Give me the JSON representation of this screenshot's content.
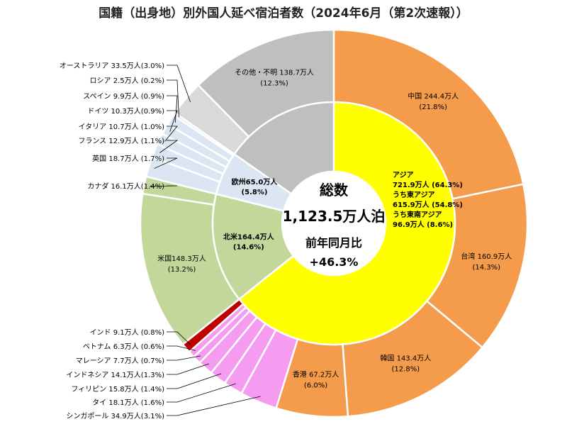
{
  "title": "国籍（出身地）別外国人延べ宿泊者数（2024年6月（第2次速報））",
  "center": {
    "line1": "総数",
    "line2": "1,123.5万人泊",
    "line3": "前年同月比",
    "line4": "+46.3%"
  },
  "chart_data": {
    "type": "pie",
    "subtype": "double-donut",
    "total": 1123.5,
    "unit": "万人泊",
    "yoy_change": "+46.3%",
    "colors": {
      "asia_east": "#f59c4c",
      "asia_southeast": "#f59cf0",
      "india": "#c00000",
      "asia_inner": "#ffff00",
      "north_america": "#c4d79b",
      "europe": "#dce6f2",
      "other": "#bfbfbf",
      "other_outer": "#d9d9d9"
    },
    "inner_ring": [
      {
        "name": "アジア",
        "value": 721.9,
        "pct": 64.3,
        "label_lines": [
          "アジア",
          "721.9万人 (64.3%)",
          "うち東アジア",
          "615.9万人 (54.8%)",
          "うち東南アジア",
          "96.9万人 (8.6%)"
        ],
        "color_key": "asia_inner"
      },
      {
        "name": "北米",
        "value": 164.4,
        "pct": 14.6,
        "label_lines": [
          "北米164.4万人",
          "(14.6%)"
        ],
        "color_key": "north_america"
      },
      {
        "name": "欧州",
        "value": 65.0,
        "pct": 5.8,
        "label_lines": [
          "欧州65.0万人",
          "(5.8%)"
        ],
        "color_key": "europe"
      },
      {
        "name": "その他",
        "value": 172.2,
        "pct": 15.3,
        "label_lines": [],
        "color_key": "other"
      }
    ],
    "outer_ring": [
      {
        "name": "中国",
        "value": 244.4,
        "pct": 21.8,
        "label_lines": [
          "中国 244.4万人",
          "(21.8%)"
        ],
        "color_key": "asia_east"
      },
      {
        "name": "台湾",
        "value": 160.9,
        "pct": 14.3,
        "label_lines": [
          "台湾 160.9万人",
          "(14.3%)"
        ],
        "color_key": "asia_east"
      },
      {
        "name": "韓国",
        "value": 143.4,
        "pct": 12.8,
        "label_lines": [
          "韓国 143.4万人",
          "(12.8%)"
        ],
        "color_key": "asia_east"
      },
      {
        "name": "香港",
        "value": 67.2,
        "pct": 6.0,
        "label_lines": [
          "香港 67.2万人",
          "(6.0%)"
        ],
        "color_key": "asia_east"
      },
      {
        "name": "シンガポール",
        "value": 34.9,
        "pct": 3.1,
        "label": "シンガポール 34.9万人(3.1%)",
        "color_key": "asia_southeast"
      },
      {
        "name": "タイ",
        "value": 18.1,
        "pct": 1.6,
        "label": "タイ 18.1万人 (1.6%)",
        "color_key": "asia_southeast"
      },
      {
        "name": "フィリピン",
        "value": 15.8,
        "pct": 1.4,
        "label": "フィリピン 15.8万人 (1.4%)",
        "color_key": "asia_southeast"
      },
      {
        "name": "インドネシア",
        "value": 14.1,
        "pct": 1.3,
        "label": "インドネシア 14.1万人(1.3%)",
        "color_key": "asia_southeast"
      },
      {
        "name": "マレーシア",
        "value": 7.7,
        "pct": 0.7,
        "label": "マレーシア 7.7万人 (0.7%)",
        "color_key": "asia_southeast"
      },
      {
        "name": "ベトナム",
        "value": 6.3,
        "pct": 0.6,
        "label": "ベトナム 6.3万人 (0.6%)",
        "color_key": "asia_southeast"
      },
      {
        "name": "インド",
        "value": 9.1,
        "pct": 0.8,
        "label": "インド 9.1万人 (0.8%)",
        "color_key": "india"
      },
      {
        "name": "米国",
        "value": 148.3,
        "pct": 13.2,
        "label_lines": [
          "米国148.3万人",
          "(13.2%)"
        ],
        "color_key": "north_america"
      },
      {
        "name": "カナダ",
        "value": 16.1,
        "pct": 1.4,
        "label": "カナダ 16.1万人(1.4%)",
        "color_key": "north_america"
      },
      {
        "name": "英国",
        "value": 18.7,
        "pct": 1.7,
        "label": "英国 18.7万人 (1.7%)",
        "color_key": "europe"
      },
      {
        "name": "フランス",
        "value": 12.9,
        "pct": 1.1,
        "label": "フランス 12.9万人 (1.1%)",
        "color_key": "europe"
      },
      {
        "name": "イタリア",
        "value": 10.7,
        "pct": 1.0,
        "label": "イタリア 10.7万人 (1.0%)",
        "color_key": "europe"
      },
      {
        "name": "ドイツ",
        "value": 10.3,
        "pct": 0.9,
        "label": "ドイツ 10.3万人(0.9%)",
        "color_key": "europe"
      },
      {
        "name": "スペイン",
        "value": 9.9,
        "pct": 0.9,
        "label": "スペイン 9.9万人 (0.9%)",
        "color_key": "europe"
      },
      {
        "name": "ロシア",
        "value": 2.5,
        "pct": 0.2,
        "label": "ロシア 2.5万人 (0.2%)",
        "color_key": "europe"
      },
      {
        "name": "オーストラリア",
        "value": 33.5,
        "pct": 3.0,
        "label": "オーストラリア 33.5万人(3.0%)",
        "color_key": "other_outer"
      },
      {
        "name": "その他・不明",
        "value": 138.7,
        "pct": 12.3,
        "label_lines": [
          "その他・不明 138.7万人",
          "(12.3%)"
        ],
        "color_key": "other"
      }
    ]
  }
}
